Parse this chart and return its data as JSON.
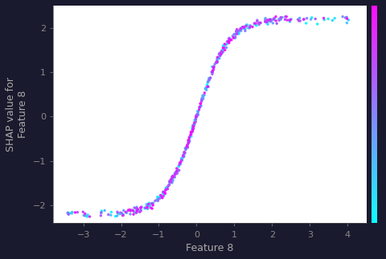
{
  "title": "",
  "xlabel": "Feature 8",
  "ylabel": "SHAP value for\nFeature 8",
  "xlim": [
    -3.8,
    4.5
  ],
  "ylim": [
    -2.4,
    2.5
  ],
  "colormap": "cool_r",
  "n_points": 400,
  "seed": 7,
  "background_color": "#ffffff",
  "fig_background": "#1a1a2e",
  "xticks": [
    -3,
    -2,
    -1,
    0,
    1,
    2,
    3,
    4
  ],
  "yticks": [
    -2,
    -1,
    0,
    1,
    2
  ],
  "marker_size": 6,
  "alpha": 0.95,
  "ylabel_fontsize": 9,
  "xlabel_fontsize": 9,
  "tick_fontsize": 8,
  "label_color": "#aaaaaa",
  "tick_color": "#888888",
  "spine_color": "#555555"
}
